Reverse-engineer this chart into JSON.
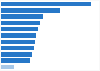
{
  "values": [
    27.5,
    18.0,
    13.0,
    11.8,
    11.2,
    10.8,
    10.4,
    10.0,
    9.6,
    9.0,
    4.0
  ],
  "bar_color_main": "#2878c8",
  "bar_color_last": "#a8c8e8",
  "background_color": "#ffffff",
  "fig_background": "#f8f8f8",
  "xlim": [
    0,
    30
  ],
  "n_bars": 11
}
